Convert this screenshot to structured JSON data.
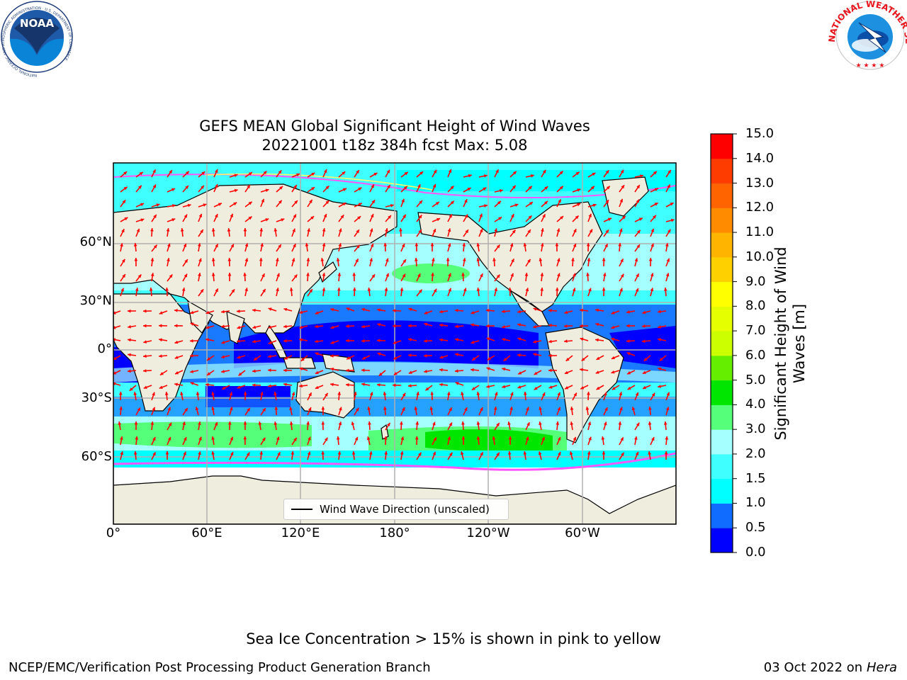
{
  "title": {
    "line1": "GEFS MEAN Global Significant Height of Wind Waves",
    "line2": "20221001 t18z 384h fcst   Max: 5.08"
  },
  "logos": {
    "noaa_text": "NOAA",
    "noaa_ring_text": "NATIONAL OCEANIC AND ATMOSPHERIC ADMINISTRATION · U.S. DEPARTMENT OF COMMERCE",
    "nws_ring_text": "NATIONAL WEATHER SERVICE"
  },
  "map": {
    "x_ticks": [
      "0°",
      "60°E",
      "120°E",
      "180°",
      "120°W",
      "60°W"
    ],
    "y_ticks": [
      "60°N",
      "30°N",
      "0°",
      "30°S",
      "60°S"
    ],
    "legend_label": "Wind Wave Direction (unscaled)",
    "land_color": "#efedde",
    "arrow_color": "#ff0000",
    "ice_note_colors": [
      "#ff55ff",
      "#ffff66"
    ]
  },
  "colorbar": {
    "label": "Significant Height of Wind Waves [m]",
    "ticks": [
      "0.0",
      "0.5",
      "1.0",
      "1.5",
      "2.0",
      "3.0",
      "4.0",
      "5.0",
      "6.0",
      "7.0",
      "8.0",
      "9.0",
      "10.0",
      "11.0",
      "12.0",
      "13.0",
      "14.0",
      "15.0"
    ],
    "colors": [
      "#0000ff",
      "#0f6cff",
      "#00ffff",
      "#40ffff",
      "#a5ffff",
      "#55ff7a",
      "#00e600",
      "#66ee00",
      "#ccff00",
      "#e6ff00",
      "#ffff00",
      "#ffd000",
      "#ffb400",
      "#ff8c00",
      "#ff6400",
      "#ff3c00",
      "#ff0000"
    ]
  },
  "footer": {
    "note": "Sea Ice Concentration > 15% is shown in pink to yellow",
    "credit": "NCEP/EMC/Verification Post Processing Product Generation Branch",
    "date": "03 Oct 2022 on",
    "host": "Hera"
  }
}
